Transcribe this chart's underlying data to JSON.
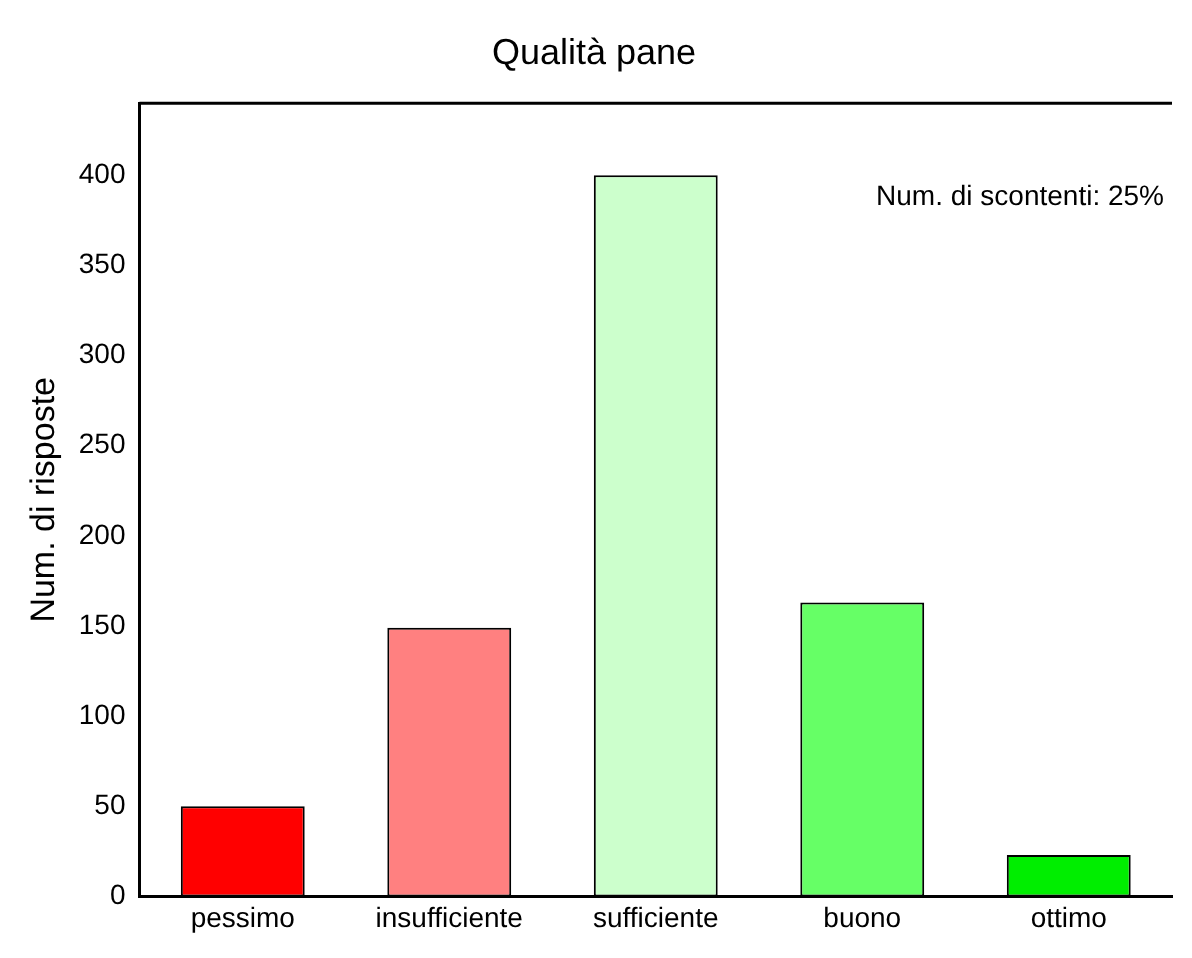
{
  "chart_data": {
    "type": "bar",
    "title": "Qualità pane",
    "ylabel": "Num. di risposte",
    "categories": [
      "pessimo",
      "insufficiente",
      "sufficiente",
      "buono",
      "ottimo"
    ],
    "values": [
      50,
      149,
      400,
      163,
      23
    ],
    "colors": [
      "#ff0000",
      "#ff8080",
      "#ccffcc",
      "#66ff66",
      "#00ee00"
    ],
    "ylim": [
      0,
      440
    ],
    "yticks": [
      0,
      50,
      100,
      150,
      200,
      250,
      300,
      350,
      400
    ],
    "annotations": [
      "Num. di scontenti: 25%"
    ],
    "grid": false,
    "legend": false
  }
}
